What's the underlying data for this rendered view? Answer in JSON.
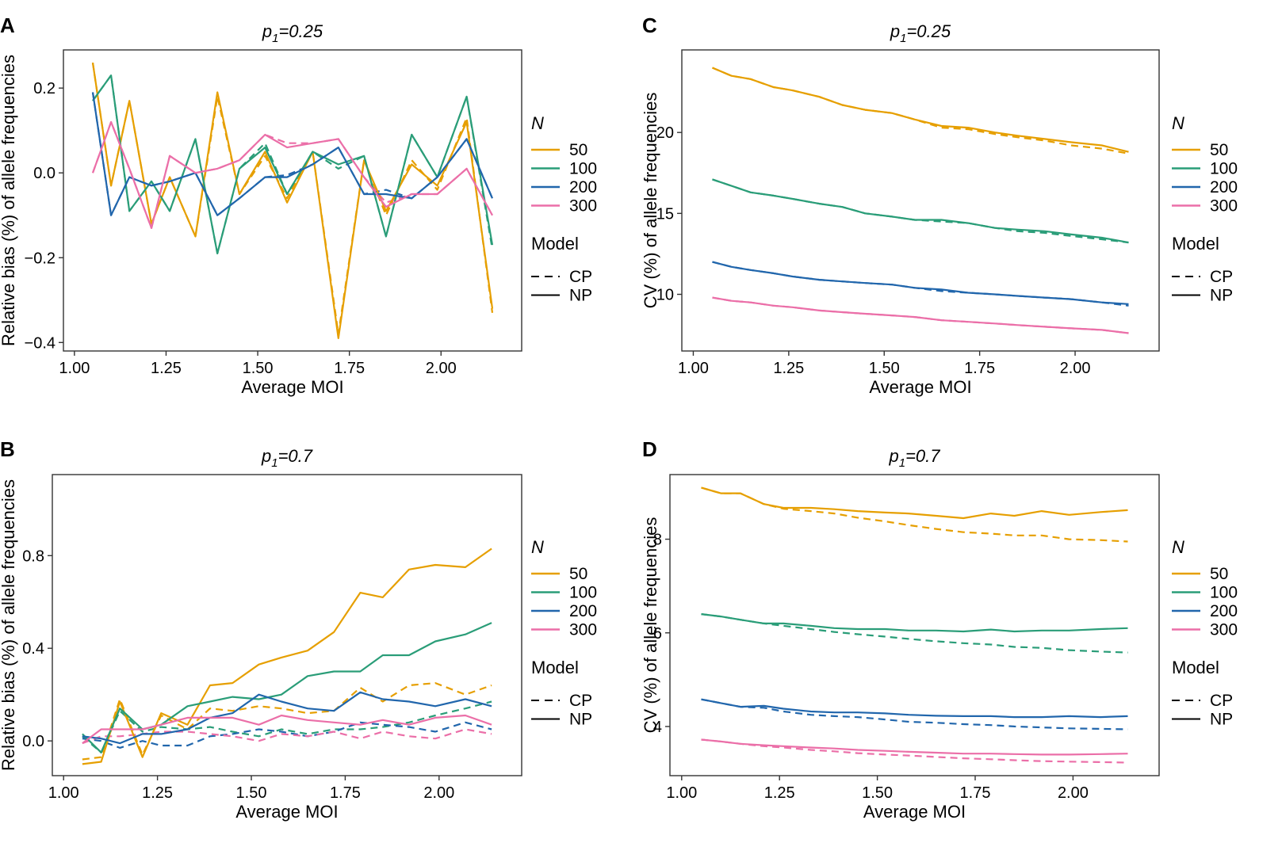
{
  "colors": {
    "50": "#E69F00",
    "100": "#2A9D78",
    "200": "#2166AC",
    "300": "#EB6FA8"
  },
  "legend": {
    "n_title": "N",
    "n_items": [
      "50",
      "100",
      "200",
      "300"
    ],
    "model_title": "Model",
    "model_items": [
      {
        "label": "CP",
        "dash": "dashed"
      },
      {
        "label": "NP",
        "dash": "solid"
      }
    ]
  },
  "chart_data": [
    {
      "panel": "A",
      "type": "line",
      "title": "p",
      "title_sub": "1",
      "title_rest": "=0.25",
      "xlabel": "Average MOI",
      "ylabel": "Relative bias (%) of allele frequencies",
      "xlim": [
        0.97,
        2.22
      ],
      "ylim": [
        -0.42,
        0.29
      ],
      "xticks": [
        1.0,
        1.25,
        1.5,
        1.75,
        2.0
      ],
      "xtick_labels": [
        "1.00",
        "1.25",
        "1.50",
        "1.75",
        "2.00"
      ],
      "yticks": [
        -0.4,
        -0.2,
        0.0,
        0.2
      ],
      "ytick_labels": [
        "−0.4",
        "−0.2",
        "0.0",
        "0.2"
      ],
      "x": [
        1.05,
        1.1,
        1.15,
        1.21,
        1.26,
        1.33,
        1.39,
        1.45,
        1.52,
        1.58,
        1.65,
        1.72,
        1.79,
        1.85,
        1.92,
        1.99,
        2.07,
        2.14
      ],
      "series": [
        {
          "n": "50",
          "model": "NP",
          "values": [
            0.26,
            -0.03,
            0.17,
            -0.12,
            -0.01,
            -0.15,
            0.19,
            -0.05,
            0.05,
            -0.07,
            0.05,
            -0.39,
            0.03,
            -0.09,
            0.02,
            -0.03,
            0.12,
            -0.32
          ]
        },
        {
          "n": "50",
          "model": "CP",
          "values": [
            0.26,
            -0.03,
            0.17,
            -0.12,
            -0.01,
            -0.15,
            0.18,
            -0.05,
            0.04,
            -0.06,
            0.05,
            -0.38,
            0.03,
            -0.1,
            0.03,
            -0.04,
            0.13,
            -0.33
          ]
        },
        {
          "n": "100",
          "model": "NP",
          "values": [
            0.17,
            0.23,
            -0.09,
            -0.02,
            -0.09,
            0.08,
            -0.19,
            0.01,
            0.06,
            -0.05,
            0.05,
            0.02,
            0.04,
            -0.15,
            0.09,
            -0.01,
            0.18,
            -0.17
          ]
        },
        {
          "n": "100",
          "model": "CP",
          "values": [
            0.17,
            0.23,
            -0.09,
            -0.02,
            -0.09,
            0.08,
            -0.19,
            0.01,
            0.07,
            -0.05,
            0.05,
            0.01,
            0.04,
            -0.15,
            0.09,
            -0.01,
            0.18,
            -0.18
          ]
        },
        {
          "n": "200",
          "model": "NP",
          "values": [
            0.19,
            -0.1,
            -0.01,
            -0.03,
            -0.02,
            0.0,
            -0.1,
            -0.06,
            -0.01,
            -0.01,
            0.02,
            0.06,
            -0.05,
            -0.05,
            -0.06,
            -0.01,
            0.08,
            -0.06
          ]
        },
        {
          "n": "200",
          "model": "CP",
          "values": [
            0.19,
            -0.1,
            -0.01,
            -0.03,
            -0.02,
            0.0,
            -0.1,
            -0.06,
            -0.01,
            -0.005,
            0.02,
            0.06,
            -0.05,
            -0.04,
            -0.06,
            -0.01,
            0.08,
            -0.06
          ]
        },
        {
          "n": "300",
          "model": "NP",
          "values": [
            0.0,
            0.12,
            0.01,
            -0.13,
            0.04,
            0.0,
            0.01,
            0.03,
            0.09,
            0.06,
            0.07,
            0.08,
            -0.01,
            -0.08,
            -0.05,
            -0.05,
            0.01,
            -0.1
          ]
        },
        {
          "n": "300",
          "model": "CP",
          "values": [
            0.0,
            0.12,
            0.01,
            -0.13,
            0.04,
            0.0,
            0.01,
            0.03,
            0.09,
            0.07,
            0.07,
            0.08,
            -0.01,
            -0.07,
            -0.05,
            -0.05,
            0.01,
            -0.1
          ]
        }
      ]
    },
    {
      "panel": "B",
      "type": "line",
      "title": "p",
      "title_sub": "1",
      "title_rest": "=0.7",
      "xlabel": "Average MOI",
      "ylabel": "Relative bias (%) of allele frequencies",
      "xlim": [
        0.97,
        2.22
      ],
      "ylim": [
        -0.15,
        1.15
      ],
      "xticks": [
        1.0,
        1.25,
        1.5,
        1.75,
        2.0
      ],
      "xtick_labels": [
        "1.00",
        "1.25",
        "1.50",
        "1.75",
        "2.00"
      ],
      "yticks": [
        0.0,
        0.4,
        0.8
      ],
      "ytick_labels": [
        "0.0",
        "0.4",
        "0.8"
      ],
      "x": [
        1.05,
        1.1,
        1.15,
        1.21,
        1.26,
        1.33,
        1.39,
        1.45,
        1.52,
        1.58,
        1.65,
        1.72,
        1.79,
        1.85,
        1.92,
        1.99,
        2.07,
        2.14
      ],
      "series": [
        {
          "n": "50",
          "model": "NP",
          "values": [
            -0.1,
            -0.09,
            0.17,
            -0.07,
            0.12,
            0.07,
            0.24,
            0.25,
            0.33,
            0.36,
            0.39,
            0.47,
            0.64,
            0.62,
            0.74,
            0.76,
            0.75,
            0.83
          ]
        },
        {
          "n": "50",
          "model": "CP",
          "values": [
            -0.08,
            -0.07,
            0.18,
            -0.06,
            0.11,
            0.05,
            0.14,
            0.13,
            0.15,
            0.14,
            0.12,
            0.13,
            0.23,
            0.17,
            0.24,
            0.25,
            0.2,
            0.24
          ]
        },
        {
          "n": "100",
          "model": "NP",
          "values": [
            0.03,
            -0.05,
            0.14,
            0.05,
            0.07,
            0.15,
            0.17,
            0.19,
            0.18,
            0.2,
            0.28,
            0.3,
            0.3,
            0.37,
            0.37,
            0.43,
            0.46,
            0.51
          ]
        },
        {
          "n": "100",
          "model": "CP",
          "values": [
            0.02,
            -0.05,
            0.13,
            0.04,
            0.06,
            0.05,
            0.06,
            0.04,
            0.02,
            0.05,
            0.03,
            0.05,
            0.05,
            0.06,
            0.08,
            0.11,
            0.14,
            0.17
          ]
        },
        {
          "n": "200",
          "model": "NP",
          "values": [
            0.02,
            0.01,
            -0.01,
            0.03,
            0.03,
            0.05,
            0.1,
            0.12,
            0.2,
            0.17,
            0.14,
            0.13,
            0.21,
            0.18,
            0.17,
            0.15,
            0.18,
            0.15
          ]
        },
        {
          "n": "200",
          "model": "CP",
          "values": [
            0.01,
            0.0,
            -0.03,
            0.0,
            -0.02,
            -0.02,
            0.02,
            0.03,
            0.05,
            0.04,
            0.02,
            0.04,
            0.08,
            0.07,
            0.06,
            0.04,
            0.08,
            0.05
          ]
        },
        {
          "n": "300",
          "model": "NP",
          "values": [
            -0.01,
            0.05,
            0.05,
            0.05,
            0.07,
            0.1,
            0.1,
            0.1,
            0.07,
            0.11,
            0.09,
            0.08,
            0.07,
            0.09,
            0.07,
            0.1,
            0.11,
            0.07
          ]
        },
        {
          "n": "300",
          "model": "CP",
          "values": [
            -0.01,
            0.02,
            0.02,
            0.03,
            0.04,
            0.04,
            0.03,
            0.02,
            0.0,
            0.03,
            0.02,
            0.04,
            0.01,
            0.04,
            0.02,
            0.01,
            0.05,
            0.03
          ]
        }
      ]
    },
    {
      "panel": "C",
      "type": "line",
      "title": "p",
      "title_sub": "1",
      "title_rest": "=0.25",
      "xlabel": "Average MOI",
      "ylabel": "CV (%) of allele frequencies",
      "xlim": [
        0.97,
        2.22
      ],
      "ylim": [
        6.5,
        25.1
      ],
      "xticks": [
        1.0,
        1.25,
        1.5,
        1.75,
        2.0
      ],
      "xtick_labels": [
        "1.00",
        "1.25",
        "1.50",
        "1.75",
        "2.00"
      ],
      "yticks": [
        10,
        15,
        20
      ],
      "ytick_labels": [
        "10",
        "15",
        "20"
      ],
      "x": [
        1.05,
        1.1,
        1.15,
        1.21,
        1.26,
        1.33,
        1.39,
        1.45,
        1.52,
        1.58,
        1.65,
        1.72,
        1.79,
        1.85,
        1.92,
        1.99,
        2.07,
        2.14
      ],
      "series": [
        {
          "n": "50",
          "model": "NP",
          "values": [
            24.0,
            23.5,
            23.3,
            22.8,
            22.6,
            22.2,
            21.7,
            21.4,
            21.2,
            20.8,
            20.4,
            20.3,
            20.0,
            19.8,
            19.6,
            19.4,
            19.2,
            18.8
          ]
        },
        {
          "n": "50",
          "model": "CP",
          "values": [
            24.0,
            23.5,
            23.3,
            22.8,
            22.6,
            22.2,
            21.7,
            21.4,
            21.2,
            20.8,
            20.3,
            20.2,
            19.9,
            19.7,
            19.5,
            19.2,
            19.0,
            18.7
          ]
        },
        {
          "n": "100",
          "model": "NP",
          "values": [
            17.1,
            16.7,
            16.3,
            16.1,
            15.9,
            15.6,
            15.4,
            15.0,
            14.8,
            14.6,
            14.6,
            14.4,
            14.1,
            14.0,
            13.9,
            13.7,
            13.5,
            13.2
          ]
        },
        {
          "n": "100",
          "model": "CP",
          "values": [
            17.1,
            16.7,
            16.3,
            16.1,
            15.9,
            15.6,
            15.4,
            15.0,
            14.8,
            14.6,
            14.5,
            14.4,
            14.1,
            13.9,
            13.8,
            13.6,
            13.4,
            13.2
          ]
        },
        {
          "n": "200",
          "model": "NP",
          "values": [
            12.0,
            11.7,
            11.5,
            11.3,
            11.1,
            10.9,
            10.8,
            10.7,
            10.6,
            10.4,
            10.3,
            10.1,
            10.0,
            9.9,
            9.8,
            9.7,
            9.5,
            9.4
          ]
        },
        {
          "n": "200",
          "model": "CP",
          "values": [
            12.0,
            11.7,
            11.5,
            11.3,
            11.1,
            10.9,
            10.8,
            10.7,
            10.6,
            10.4,
            10.2,
            10.1,
            10.0,
            9.9,
            9.8,
            9.7,
            9.5,
            9.3
          ]
        },
        {
          "n": "300",
          "model": "NP",
          "values": [
            9.8,
            9.6,
            9.5,
            9.3,
            9.2,
            9.0,
            8.9,
            8.8,
            8.7,
            8.6,
            8.4,
            8.3,
            8.2,
            8.1,
            8.0,
            7.9,
            7.8,
            7.6
          ]
        },
        {
          "n": "300",
          "model": "CP",
          "values": [
            9.8,
            9.6,
            9.5,
            9.3,
            9.2,
            9.0,
            8.9,
            8.8,
            8.7,
            8.6,
            8.4,
            8.3,
            8.2,
            8.1,
            8.0,
            7.9,
            7.8,
            7.6
          ]
        }
      ]
    },
    {
      "panel": "D",
      "type": "line",
      "title": "p",
      "title_sub": "1",
      "title_rest": "=0.7",
      "xlabel": "Average MOI",
      "ylabel": "CV (%) of allele frequencies",
      "xlim": [
        0.97,
        2.22
      ],
      "ylim": [
        2.95,
        9.38
      ],
      "xticks": [
        1.0,
        1.25,
        1.5,
        1.75,
        2.0
      ],
      "xtick_labels": [
        "1.00",
        "1.25",
        "1.50",
        "1.75",
        "2.00"
      ],
      "yticks": [
        4,
        6,
        8
      ],
      "ytick_labels": [
        "4",
        "6",
        "8"
      ],
      "x": [
        1.05,
        1.1,
        1.15,
        1.21,
        1.26,
        1.33,
        1.39,
        1.45,
        1.52,
        1.58,
        1.65,
        1.72,
        1.79,
        1.85,
        1.92,
        1.99,
        2.07,
        2.14
      ],
      "series": [
        {
          "n": "50",
          "model": "NP",
          "values": [
            9.1,
            8.98,
            8.98,
            8.75,
            8.67,
            8.67,
            8.64,
            8.6,
            8.57,
            8.55,
            8.5,
            8.45,
            8.55,
            8.5,
            8.6,
            8.52,
            8.58,
            8.62
          ]
        },
        {
          "n": "50",
          "model": "CP",
          "values": [
            9.1,
            8.98,
            8.98,
            8.75,
            8.65,
            8.6,
            8.55,
            8.46,
            8.38,
            8.3,
            8.22,
            8.15,
            8.12,
            8.08,
            8.08,
            8.0,
            7.98,
            7.95
          ]
        },
        {
          "n": "100",
          "model": "NP",
          "values": [
            6.4,
            6.35,
            6.28,
            6.2,
            6.2,
            6.15,
            6.1,
            6.08,
            6.08,
            6.05,
            6.05,
            6.03,
            6.07,
            6.03,
            6.05,
            6.05,
            6.08,
            6.1
          ]
        },
        {
          "n": "100",
          "model": "CP",
          "values": [
            6.4,
            6.35,
            6.28,
            6.2,
            6.15,
            6.08,
            6.02,
            5.97,
            5.92,
            5.87,
            5.82,
            5.78,
            5.75,
            5.7,
            5.68,
            5.63,
            5.6,
            5.58
          ]
        },
        {
          "n": "200",
          "model": "NP",
          "values": [
            4.58,
            4.5,
            4.42,
            4.44,
            4.38,
            4.32,
            4.3,
            4.3,
            4.28,
            4.25,
            4.23,
            4.22,
            4.22,
            4.2,
            4.2,
            4.22,
            4.2,
            4.22
          ]
        },
        {
          "n": "200",
          "model": "CP",
          "values": [
            4.58,
            4.5,
            4.42,
            4.4,
            4.32,
            4.25,
            4.22,
            4.2,
            4.15,
            4.1,
            4.08,
            4.05,
            4.03,
            4.0,
            3.98,
            3.96,
            3.95,
            3.94
          ]
        },
        {
          "n": "300",
          "model": "NP",
          "values": [
            3.72,
            3.68,
            3.63,
            3.6,
            3.58,
            3.55,
            3.53,
            3.5,
            3.48,
            3.46,
            3.44,
            3.42,
            3.42,
            3.41,
            3.4,
            3.4,
            3.41,
            3.42
          ]
        },
        {
          "n": "300",
          "model": "CP",
          "values": [
            3.72,
            3.68,
            3.63,
            3.58,
            3.55,
            3.5,
            3.47,
            3.43,
            3.4,
            3.38,
            3.35,
            3.32,
            3.3,
            3.28,
            3.26,
            3.25,
            3.24,
            3.23
          ]
        }
      ]
    }
  ]
}
